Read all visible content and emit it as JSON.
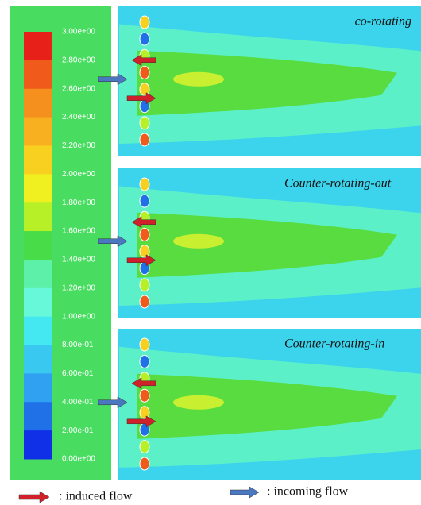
{
  "colorbar": {
    "labels": [
      "3.00e+00",
      "2.80e+00",
      "2.60e+00",
      "2.40e+00",
      "2.20e+00",
      "2.00e+00",
      "1.80e+00",
      "1.60e+00",
      "1.40e+00",
      "1.20e+00",
      "1.00e+00",
      "8.00e-01",
      "6.00e-01",
      "4.00e-01",
      "2.00e-01",
      "0.00e+00"
    ],
    "colors": [
      "#e8201a",
      "#f05a1a",
      "#f5901e",
      "#f8b020",
      "#f8d020",
      "#f0f020",
      "#b8f028",
      "#48dc48",
      "#5cf0a8",
      "#66f8d8",
      "#44e8f0",
      "#38c8f0",
      "#30a0f0",
      "#2070e8",
      "#1030e8"
    ]
  },
  "panels": [
    {
      "title": "co-rotating"
    },
    {
      "title": "Counter-rotating-out"
    },
    {
      "title": "Counter-rotating-in"
    }
  ],
  "legend": [
    {
      "label": ": induced flow",
      "color": "#d0202a"
    },
    {
      "label": ": incoming flow",
      "color": "#4a78c0"
    }
  ]
}
